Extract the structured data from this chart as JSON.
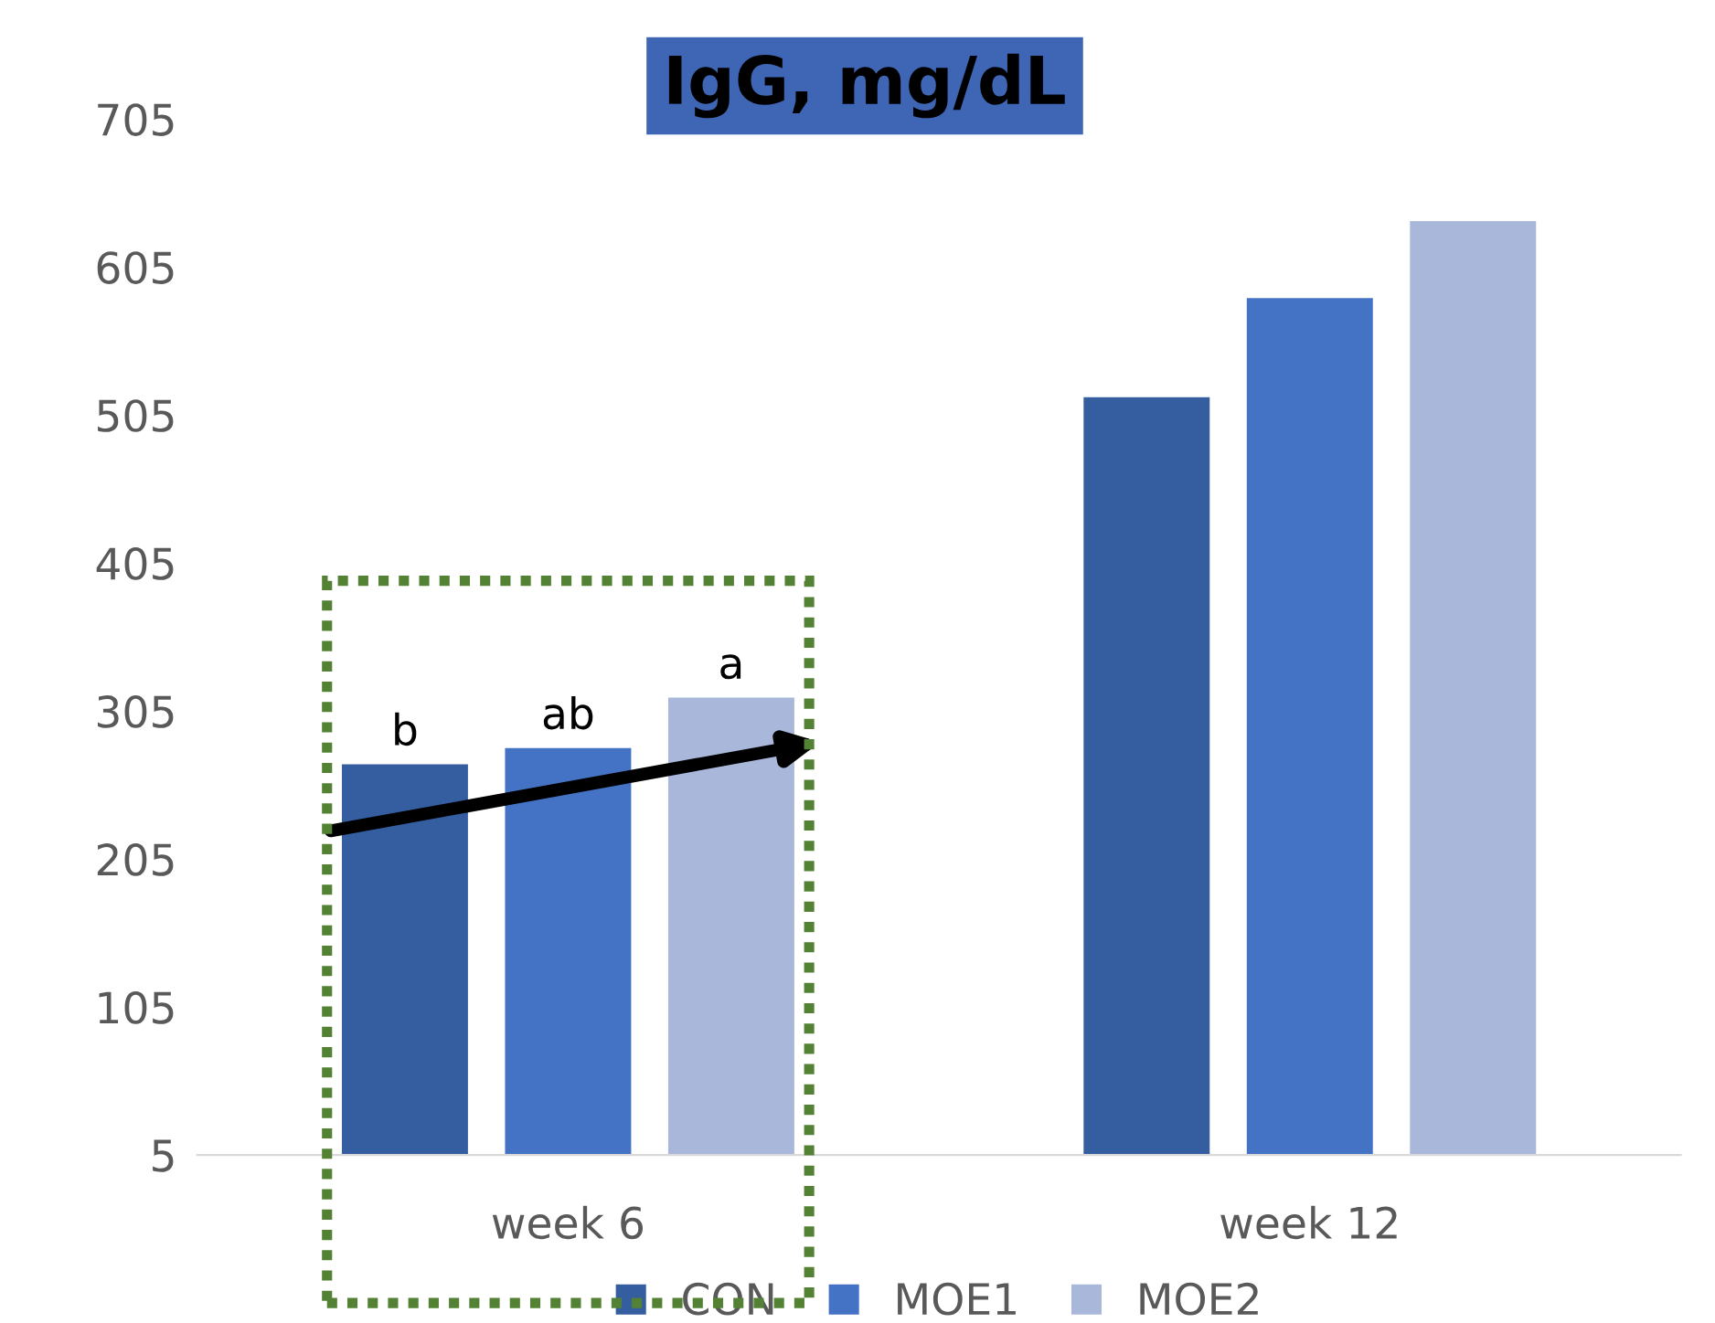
{
  "chart_data": {
    "type": "bar",
    "title": "IgG, mg/dL",
    "categories": [
      "week 6",
      "week 12"
    ],
    "series": [
      {
        "name": "CON",
        "color": "#345ea0",
        "values": [
          269,
          517
        ]
      },
      {
        "name": "MOE1",
        "color": "#4472c4",
        "values": [
          280,
          584
        ]
      },
      {
        "name": "MOE2",
        "color": "#a9b7da",
        "values": [
          314,
          636
        ]
      }
    ],
    "ylim": [
      5,
      705
    ],
    "yticks": [
      5,
      105,
      205,
      305,
      405,
      505,
      605,
      705
    ],
    "annotations": [
      "b",
      "ab",
      "a"
    ],
    "grid": false,
    "legend": "bottom"
  }
}
